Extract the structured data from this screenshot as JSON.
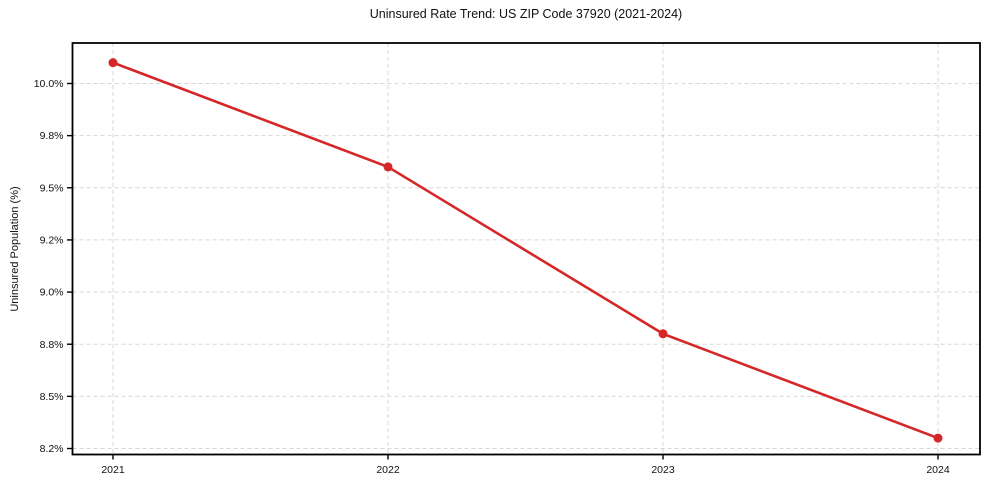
{
  "chart_data": {
    "type": "line",
    "title": "Uninsured Rate Trend: US ZIP Code 37920 (2021-2024)",
    "xlabel": "",
    "ylabel": "Uninsured Population (%)",
    "categories": [
      "2021",
      "2022",
      "2023",
      "2024"
    ],
    "series": [
      {
        "name": "Uninsured rate",
        "values": [
          10.08,
          9.62,
          8.84,
          8.26
        ],
        "color": "#d62728",
        "marker": "circle"
      }
    ],
    "x_axis": {
      "tick_labels": [
        "2021",
        "2022",
        "2023",
        "2024"
      ]
    },
    "y_axis": {
      "tick_values": [
        8.2,
        8.5,
        8.8,
        9.0,
        9.2,
        9.5,
        9.8,
        10.0
      ],
      "tick_labels": [
        "8.2%",
        "8.5%",
        "8.8%",
        "9.0%",
        "9.2%",
        "9.5%",
        "9.8%",
        "10.0%"
      ]
    },
    "grid": true,
    "legend": false,
    "background": "#ffffff"
  }
}
